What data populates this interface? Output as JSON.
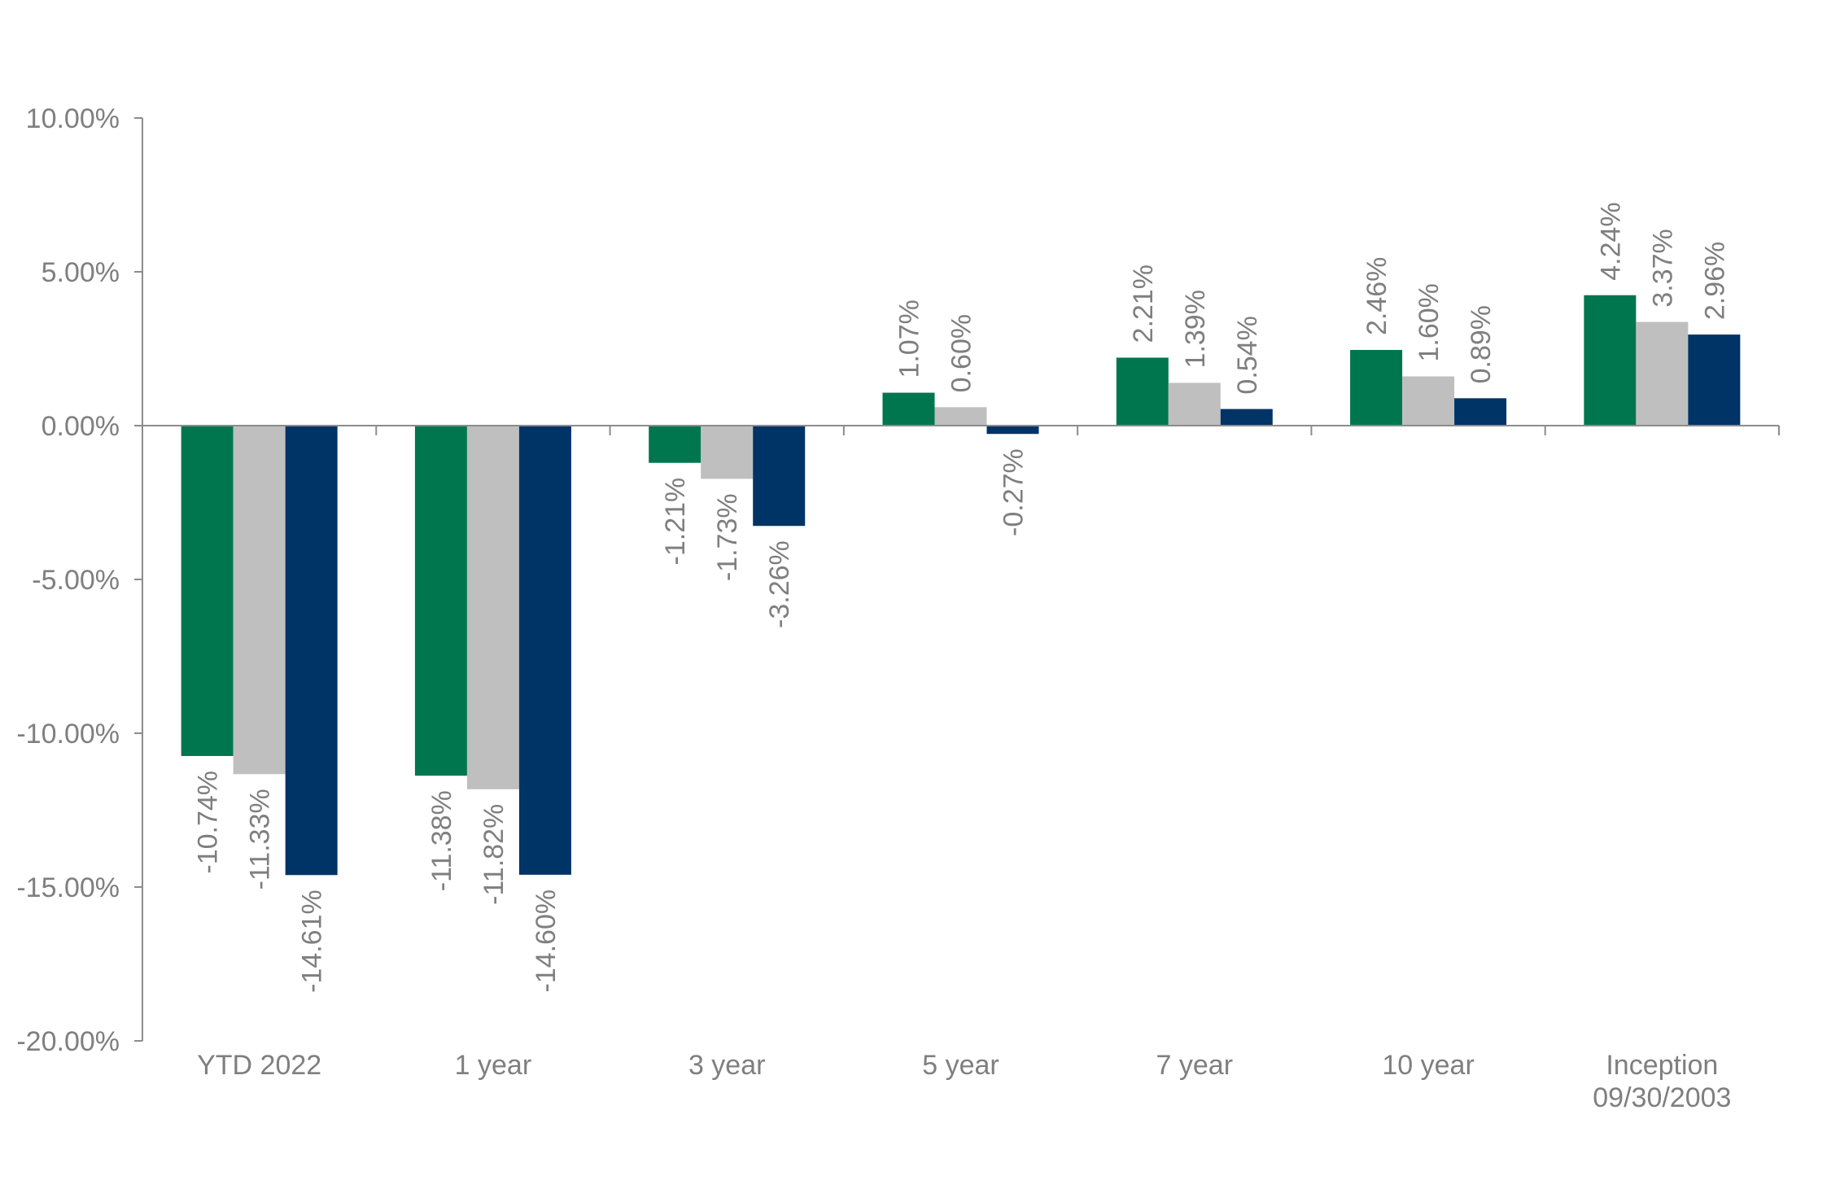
{
  "chart_data": {
    "type": "bar",
    "categories": [
      [
        "YTD 2022"
      ],
      [
        "1 year"
      ],
      [
        "3 year"
      ],
      [
        "5 year"
      ],
      [
        "7 year"
      ],
      [
        "10 year"
      ],
      [
        "Inception",
        "09/30/2003"
      ]
    ],
    "series": [
      {
        "color": "#00764f",
        "values": [
          -10.74,
          -11.38,
          -1.21,
          1.07,
          2.21,
          2.46,
          4.24
        ],
        "labels": [
          "-10.74%",
          "-11.38%",
          "-1.21%",
          "1.07%",
          "2.21%",
          "2.46%",
          "4.24%"
        ]
      },
      {
        "color": "#bfbfbf",
        "values": [
          -11.33,
          -11.82,
          -1.73,
          0.6,
          1.39,
          1.6,
          3.37
        ],
        "labels": [
          "-11.33%",
          "-11.82%",
          "-1.73%",
          "0.60%",
          "1.39%",
          "1.60%",
          "3.37%"
        ]
      },
      {
        "color": "#003366",
        "values": [
          -14.61,
          -14.6,
          -3.26,
          -0.27,
          0.54,
          0.89,
          2.96
        ],
        "labels": [
          "-14.61%",
          "-14.60%",
          "-3.26%",
          "-0.27%",
          "0.54%",
          "0.89%",
          "2.96%"
        ]
      }
    ],
    "ylim": [
      -20,
      10
    ],
    "yticks": [
      10,
      5,
      0,
      -5,
      -10,
      -15,
      -20
    ],
    "ytick_labels": [
      "10.00%",
      "5.00%",
      "0.00%",
      "-5.00%",
      "-10.00%",
      "-15.00%",
      "-20.00%"
    ],
    "title": "",
    "xlabel": "",
    "ylabel": "",
    "legend": "none",
    "grid": false,
    "axis_color": "#8c8c8c",
    "text_color": "#7f7f7f"
  }
}
